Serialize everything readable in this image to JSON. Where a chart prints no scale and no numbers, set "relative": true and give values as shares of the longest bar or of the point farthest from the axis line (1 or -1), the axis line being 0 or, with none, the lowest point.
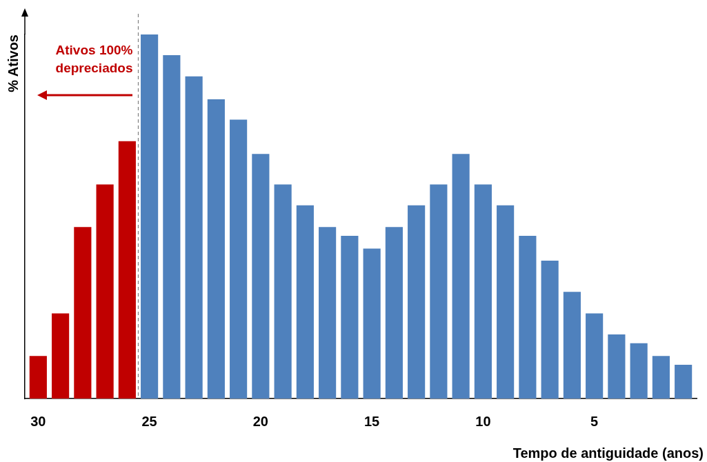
{
  "chart_data": {
    "type": "bar",
    "relative": true,
    "x": [
      30,
      29,
      28,
      27,
      26,
      25,
      24,
      23,
      22,
      21,
      20,
      19,
      18,
      17,
      16,
      15,
      14,
      13,
      12,
      11,
      10,
      9,
      8,
      7,
      6,
      5,
      4,
      3,
      2,
      1
    ],
    "values": [
      0.117,
      0.234,
      0.471,
      0.588,
      0.707,
      1,
      0.943,
      0.885,
      0.822,
      0.766,
      0.672,
      0.588,
      0.531,
      0.471,
      0.447,
      0.412,
      0.471,
      0.531,
      0.588,
      0.672,
      0.588,
      0.531,
      0.447,
      0.379,
      0.293,
      0.234,
      0.176,
      0.152,
      0.117,
      0.093
    ],
    "colors": [
      "#c00000",
      "#c00000",
      "#c00000",
      "#c00000",
      "#c00000",
      "#4f81bd",
      "#4f81bd",
      "#4f81bd",
      "#4f81bd",
      "#4f81bd",
      "#4f81bd",
      "#4f81bd",
      "#4f81bd",
      "#4f81bd",
      "#4f81bd",
      "#4f81bd",
      "#4f81bd",
      "#4f81bd",
      "#4f81bd",
      "#4f81bd",
      "#4f81bd",
      "#4f81bd",
      "#4f81bd",
      "#4f81bd",
      "#4f81bd",
      "#4f81bd",
      "#4f81bd",
      "#4f81bd",
      "#4f81bd",
      "#4f81bd"
    ],
    "xlim": [
      30.6,
      0.4
    ],
    "xticks": [
      30,
      25,
      20,
      15,
      10,
      5
    ],
    "xlabel": "Tempo de antiguidade (anos)",
    "ylabel": "% Ativos",
    "ref_lines": [
      {
        "axis": "x",
        "value": 25.5,
        "color": "#808080",
        "line_style": "dashed"
      }
    ],
    "annotations": [
      "Ativos 100%\ndepreciados"
    ],
    "grid": false,
    "legend": false
  }
}
